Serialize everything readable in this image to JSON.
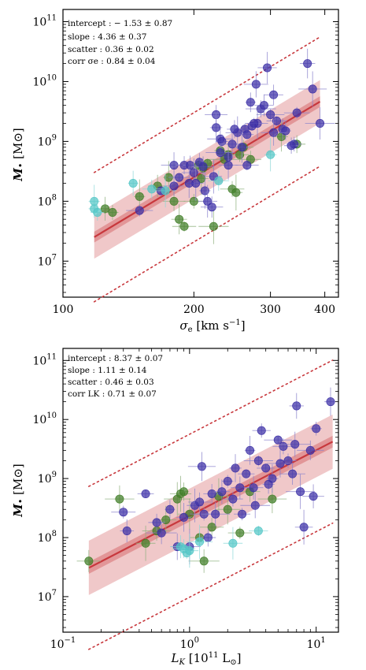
{
  "chart_data": [
    {
      "type": "scatter",
      "xscale": "log",
      "yscale": "log",
      "xlim": [
        100,
        430
      ],
      "ylim": [
        2500000.0,
        160000000000.0
      ],
      "xticks": [
        {
          "v": 100,
          "label": "100"
        },
        {
          "v": 200,
          "label": "200"
        },
        {
          "v": 300,
          "label": "300"
        },
        {
          "v": 400,
          "label": "400"
        }
      ],
      "yticks": [
        {
          "v": 10000000.0,
          "base": "10",
          "exp": "7"
        },
        {
          "v": 100000000.0,
          "base": "10",
          "exp": "8"
        },
        {
          "v": 1000000000.0,
          "base": "10",
          "exp": "9"
        },
        {
          "v": 10000000000.0,
          "base": "10",
          "exp": "10"
        },
        {
          "v": 100000000000.0,
          "base": "10",
          "exp": "11"
        }
      ],
      "xlabel": "σe [km s−1]",
      "ylabel": "M• [M⊙]",
      "annotations": [
        "intercept : − 1.53 ± 0.87",
        "slope : 4.36 ± 0.37",
        "scatter : 0.36 ± 0.02",
        "corr σe : 0.84 ± 0.04"
      ],
      "fit": {
        "x0": 200,
        "intercept_log": 8.4,
        "slope": 4.36,
        "scatter": 0.36,
        "band_inner": 0.09,
        "band_outer": 0.36,
        "x_range": [
          118,
          390
        ]
      },
      "colors": {
        "fit": "#c8383d",
        "band": "#c8383d",
        "blue": "#3b2fa6",
        "green": "#3f7d25",
        "cyan": "#52c6c6",
        "err_blue": "#8a82cc",
        "err_green": "#8fb07e",
        "err_cyan": "#8fd8d8"
      },
      "points": {
        "blue": [
          [
            225,
            2800000000.0
          ],
          [
            230,
            1100000000.0
          ],
          [
            232,
            1000000000.0
          ],
          [
            262,
            1600000000.0
          ],
          [
            270,
            4500000000.0
          ],
          [
            278,
            9000000000.0
          ],
          [
            285,
            3500000000.0
          ],
          [
            290,
            4000000000.0
          ],
          [
            295,
            17000000000.0
          ],
          [
            305,
            6000000000.0
          ],
          [
            340,
            900000000.0
          ],
          [
            345,
            3000000000.0
          ],
          [
            365,
            20000000000.0
          ],
          [
            375,
            7500000000.0
          ],
          [
            390,
            2000000000.0
          ],
          [
            180,
            400000000.0
          ],
          [
            185,
            250000000.0
          ],
          [
            190,
            400000000.0
          ],
          [
            196,
            400000000.0
          ],
          [
            200,
            300000000.0
          ],
          [
            202,
            200000000.0
          ],
          [
            206,
            450000000.0
          ],
          [
            210,
            380000000.0
          ],
          [
            212,
            150000000.0
          ],
          [
            215,
            100000000.0
          ],
          [
            220,
            80000000.0
          ],
          [
            225,
            1700000000.0
          ],
          [
            230,
            650000000.0
          ],
          [
            240,
            550000000.0
          ],
          [
            245,
            900000000.0
          ],
          [
            252,
            1400000000.0
          ],
          [
            258,
            800000000.0
          ],
          [
            265,
            1300000000.0
          ],
          [
            272,
            1800000000.0
          ],
          [
            280,
            2000000000.0
          ],
          [
            300,
            2800000000.0
          ],
          [
            310,
            2200000000.0
          ],
          [
            320,
            1600000000.0
          ],
          [
            325,
            1500000000.0
          ],
          [
            335,
            850000000.0
          ],
          [
            150,
            70000000.0
          ],
          [
            168,
            150000000.0
          ],
          [
            265,
            400000000.0
          ],
          [
            275,
            2000000000.0
          ],
          [
            180,
            180000000.0
          ],
          [
            195,
            200000000.0
          ],
          [
            240,
            400000000.0
          ],
          [
            222,
            260000000.0
          ],
          [
            305,
            1400000000.0
          ],
          [
            248,
            1600000000.0
          ]
        ],
        "green": [
          [
            125,
            75000000.0
          ],
          [
            130,
            65000000.0
          ],
          [
            165,
            180000000.0
          ],
          [
            175,
            250000000.0
          ],
          [
            180,
            100000000.0
          ],
          [
            185,
            50000000.0
          ],
          [
            190,
            38000000.0
          ],
          [
            200,
            100000000.0
          ],
          [
            205,
            400000000.0
          ],
          [
            210,
            360000000.0
          ],
          [
            215,
            430000000.0
          ],
          [
            222,
            38000000.0
          ],
          [
            230,
            700000000.0
          ],
          [
            235,
            500000000.0
          ],
          [
            240,
            600000000.0
          ],
          [
            245,
            160000000.0
          ],
          [
            250,
            140000000.0
          ],
          [
            255,
            600000000.0
          ],
          [
            270,
            500000000.0
          ],
          [
            318,
            1200000000.0
          ],
          [
            345,
            900000000.0
          ],
          [
            150,
            120000000.0
          ],
          [
            208,
            240000000.0
          ],
          [
            260,
            800000000.0
          ]
        ],
        "cyan": [
          [
            118,
            100000000.0
          ],
          [
            118,
            75000000.0
          ],
          [
            120,
            65000000.0
          ],
          [
            145,
            200000000.0
          ],
          [
            160,
            160000000.0
          ],
          [
            172,
            150000000.0
          ],
          [
            228,
            220000000.0
          ],
          [
            300,
            600000000.0
          ]
        ]
      }
    },
    {
      "type": "scatter",
      "xscale": "log",
      "yscale": "log",
      "xlim": [
        0.1,
        15
      ],
      "ylim": [
        2500000.0,
        160000000000.0
      ],
      "xticks": [
        {
          "v": 0.1,
          "base": "10",
          "exp": "−1"
        },
        {
          "v": 1,
          "base": "10",
          "exp": "0"
        },
        {
          "v": 10,
          "base": "10",
          "exp": "1"
        }
      ],
      "yticks": [
        {
          "v": 10000000.0,
          "base": "10",
          "exp": "7"
        },
        {
          "v": 100000000.0,
          "base": "10",
          "exp": "8"
        },
        {
          "v": 1000000000.0,
          "base": "10",
          "exp": "9"
        },
        {
          "v": 10000000000.0,
          "base": "10",
          "exp": "10"
        },
        {
          "v": 100000000000.0,
          "base": "10",
          "exp": "11"
        }
      ],
      "xlabel": "LK [1011 L⊙]",
      "ylabel": "M• [M⊙]",
      "annotations": [
        "intercept : 8.37 ± 0.07",
        "slope : 1.11 ± 0.14",
        "scatter : 0.46 ± 0.03",
        "corr LK : 0.71 ± 0.07"
      ],
      "fit": {
        "x0": 1,
        "intercept_log": 8.37,
        "slope": 1.11,
        "scatter": 0.46,
        "band_inner": 0.1,
        "band_outer": 0.46,
        "x_range": [
          0.16,
          13.5
        ]
      },
      "colors": {
        "fit": "#c8383d",
        "band": "#c8383d",
        "blue": "#3b2fa6",
        "green": "#3f7d25",
        "cyan": "#52c6c6",
        "err_blue": "#8a82cc",
        "err_green": "#8fb07e",
        "err_cyan": "#8fd8d8"
      },
      "points": {
        "blue": [
          [
            0.3,
            270000000.0
          ],
          [
            0.32,
            130000000.0
          ],
          [
            0.45,
            550000000.0
          ],
          [
            0.6,
            120000000.0
          ],
          [
            0.7,
            300000000.0
          ],
          [
            0.8,
            70000000.0
          ],
          [
            0.9,
            220000000.0
          ],
          [
            1.1,
            350000000.0
          ],
          [
            1.2,
            400000000.0
          ],
          [
            1.3,
            250000000.0
          ],
          [
            1.5,
            550000000.0
          ],
          [
            1.6,
            250000000.0
          ],
          [
            2.0,
            900000000.0
          ],
          [
            2.2,
            450000000.0
          ],
          [
            2.5,
            700000000.0
          ],
          [
            2.8,
            1200000000.0
          ],
          [
            3.0,
            3000000000.0
          ],
          [
            3.2,
            700000000.0
          ],
          [
            3.5,
            2000000000.0
          ],
          [
            3.7,
            6500000000.0
          ],
          [
            4.0,
            1500000000.0
          ],
          [
            4.5,
            1000000000.0
          ],
          [
            5.0,
            4500000000.0
          ],
          [
            5.5,
            3500000000.0
          ],
          [
            6.0,
            2000000000.0
          ],
          [
            6.5,
            1200000000.0
          ],
          [
            7.0,
            17000000000.0
          ],
          [
            7.5,
            600000000.0
          ],
          [
            8.0,
            150000000.0
          ],
          [
            9.0,
            3000000000.0
          ],
          [
            10.0,
            7000000000.0
          ],
          [
            13.0,
            20000000000.0
          ],
          [
            1.0,
            70000000.0
          ],
          [
            1.4,
            100000000.0
          ],
          [
            2.6,
            250000000.0
          ],
          [
            3.3,
            350000000.0
          ],
          [
            5.2,
            1800000000.0
          ],
          [
            1.8,
            600000000.0
          ],
          [
            2.3,
            1500000000.0
          ],
          [
            6.8,
            3800000000.0
          ],
          [
            0.55,
            180000000.0
          ],
          [
            9.5,
            500000000.0
          ],
          [
            4.2,
            800000000.0
          ],
          [
            1.25,
            1600000000.0
          ]
        ],
        "green": [
          [
            0.16,
            40000000.0
          ],
          [
            0.28,
            450000000.0
          ],
          [
            0.45,
            80000000.0
          ],
          [
            0.55,
            130000000.0
          ],
          [
            0.65,
            200000000.0
          ],
          [
            0.8,
            450000000.0
          ],
          [
            0.85,
            550000000.0
          ],
          [
            1.0,
            250000000.0
          ],
          [
            1.2,
            100000000.0
          ],
          [
            1.3,
            40000000.0
          ],
          [
            1.5,
            150000000.0
          ],
          [
            2.0,
            300000000.0
          ],
          [
            3.0,
            600000000.0
          ],
          [
            4.5,
            450000000.0
          ],
          [
            0.9,
            600000000.0
          ],
          [
            1.7,
            500000000.0
          ],
          [
            2.5,
            120000000.0
          ]
        ],
        "cyan": [
          [
            0.85,
            70000000.0
          ],
          [
            0.9,
            65000000.0
          ],
          [
            0.95,
            55000000.0
          ],
          [
            1.0,
            60000000.0
          ],
          [
            1.2,
            85000000.0
          ],
          [
            2.2,
            80000000.0
          ],
          [
            3.5,
            130000000.0
          ]
        ]
      }
    }
  ]
}
